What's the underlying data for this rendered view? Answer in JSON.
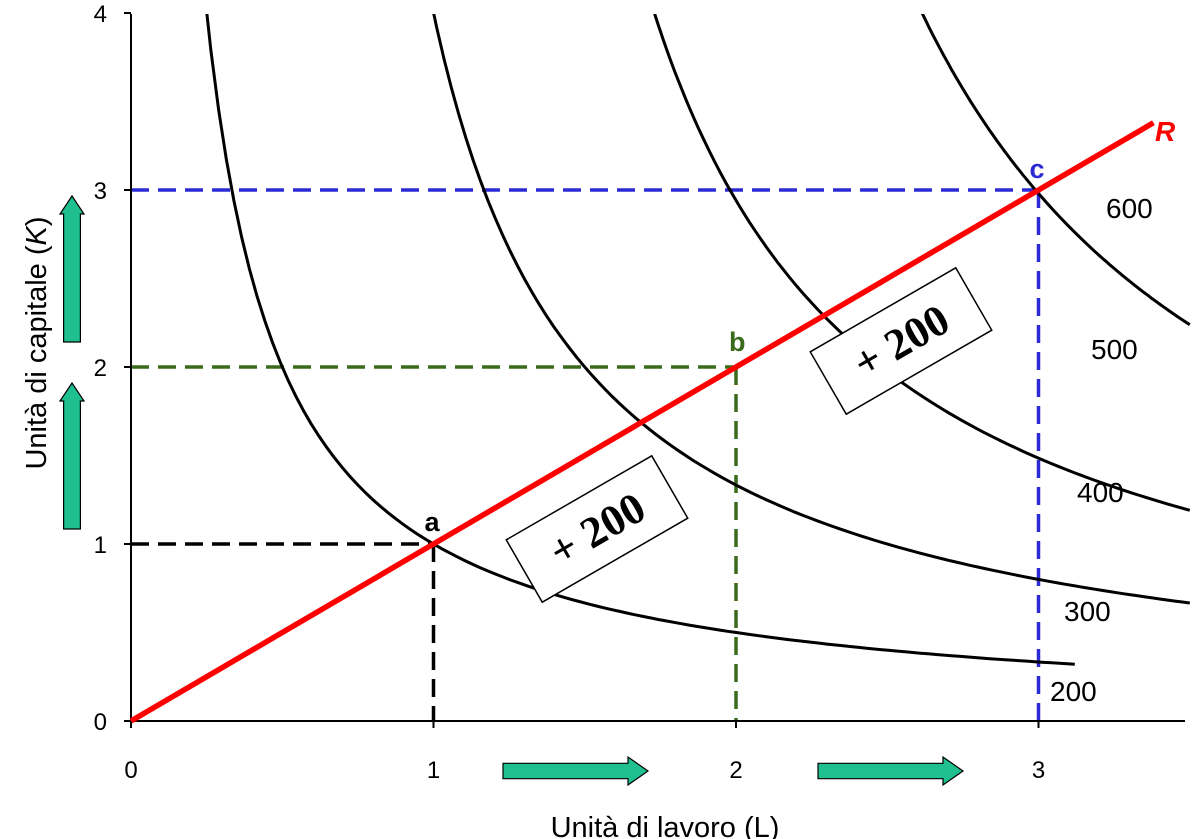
{
  "chart_data": {
    "type": "line",
    "x": {
      "label": "Unità di lavoro (L)",
      "ticks": [
        0,
        1,
        2,
        3
      ],
      "range": [
        0,
        3.5
      ]
    },
    "y": {
      "label_prefix": "Unità di capitale (",
      "label_var": "K",
      "label_suffix": ")",
      "ticks": [
        0,
        1,
        2,
        3,
        4
      ],
      "range": [
        0,
        4
      ]
    },
    "isoquants": [
      {
        "label": "200",
        "k": 1
      },
      {
        "label": "300",
        "k": 2
      },
      {
        "label": "400",
        "k": 3
      },
      {
        "label": "500",
        "k": 4.5
      },
      {
        "label": "600",
        "k": 6.75
      }
    ],
    "ray": {
      "label": "R",
      "slope": 1,
      "color": "#ff0000"
    },
    "points": [
      {
        "label": "a",
        "x": 1,
        "y": 1,
        "color": "#000000"
      },
      {
        "label": "b",
        "x": 2,
        "y": 2,
        "color": "#3a6b1c"
      },
      {
        "label": "c",
        "x": 3,
        "y": 3,
        "color": "#2b2bd6"
      }
    ],
    "annotations": [
      "+ 200",
      "+ 200"
    ],
    "arrow_color": "#1fbf8f",
    "grid": false
  }
}
